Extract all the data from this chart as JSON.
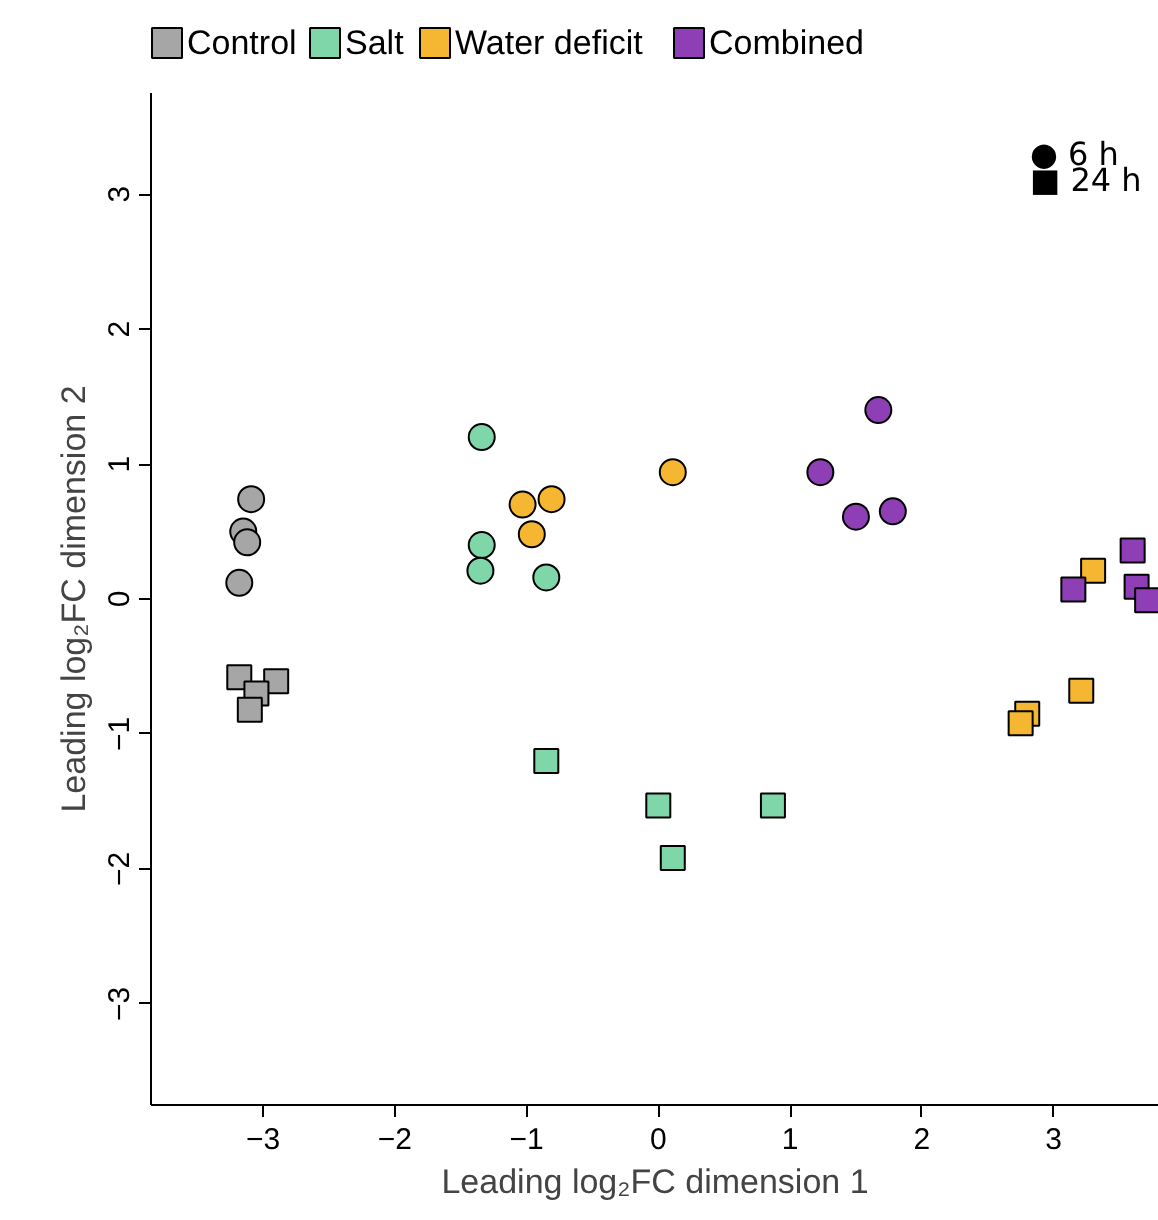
{
  "chart_data": {
    "type": "scatter",
    "xlabel": "Leading log₂FC dimension 1",
    "ylabel": "Leading log₂FC dimension 2",
    "xlim": [
      -3.85,
      3.8
    ],
    "ylim": [
      -3.75,
      3.75
    ],
    "xticks": [
      -3,
      -2,
      -1,
      0,
      1,
      2,
      3
    ],
    "yticks": [
      -3,
      -2,
      -1,
      0,
      1,
      2,
      3
    ],
    "grid": false,
    "legend": "top",
    "annotations": [
      "● 6 h",
      "■ 24 h"
    ],
    "series": [
      {
        "name": "Control",
        "color": "#a6a6a6",
        "marker": "circle",
        "x": [
          -3.09,
          -3.15,
          -3.12,
          -3.18
        ],
        "values": [
          0.74,
          0.5,
          0.42,
          0.12
        ]
      },
      {
        "color": "#a6a6a6",
        "marker": "square",
        "x": [
          -3.18,
          -2.9,
          -3.05,
          -3.1
        ],
        "values": [
          -0.58,
          -0.61,
          -0.7,
          -0.82
        ]
      },
      {
        "name": "Salt",
        "color": "#7fd6a8",
        "marker": "circle",
        "x": [
          -1.34,
          -1.34,
          -1.35,
          -0.85
        ],
        "values": [
          1.2,
          0.4,
          0.21,
          0.16
        ]
      },
      {
        "color": "#7fd6a8",
        "marker": "square",
        "x": [
          -0.85,
          0.0,
          0.11,
          0.87
        ],
        "values": [
          -1.2,
          -1.53,
          -1.92,
          -1.53
        ]
      },
      {
        "name": "Water deficit",
        "color": "#f5b731",
        "marker": "circle",
        "x": [
          -1.03,
          -0.81,
          -0.96,
          0.11
        ],
        "values": [
          0.7,
          0.74,
          0.48,
          0.94
        ]
      },
      {
        "color": "#f5b731",
        "marker": "square",
        "x": [
          3.3,
          3.21,
          2.8,
          2.75
        ],
        "values": [
          0.21,
          -0.68,
          -0.85,
          -0.92
        ]
      },
      {
        "name": "Combined",
        "color": "#8e3fb5",
        "marker": "circle",
        "x": [
          1.23,
          1.67,
          1.5,
          1.78
        ],
        "values": [
          0.94,
          1.4,
          0.61,
          0.65
        ]
      },
      {
        "color": "#8e3fb5",
        "marker": "square",
        "x": [
          3.15,
          3.6,
          3.63,
          3.71
        ],
        "values": [
          0.07,
          0.36,
          0.09,
          -0.01
        ]
      }
    ]
  }
}
